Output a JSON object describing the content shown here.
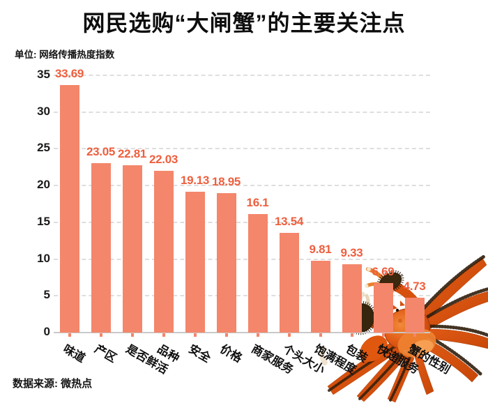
{
  "title": "网民选购“大闸蟹”的主要关注点",
  "subtitle": "单位: 网络传播热度指数",
  "source": "数据来源: 微热点",
  "chart_data": {
    "type": "bar",
    "title": "网民选购“大闸蟹”的主要关注点",
    "unit": "网络传播热度指数",
    "categories": [
      "味道",
      "产区",
      "是否鲜活",
      "品种",
      "安全",
      "价格",
      "商家服务",
      "个头大小",
      "饱满程度",
      "包装",
      "快递服务",
      "蟹的性别"
    ],
    "values": [
      33.69,
      23.05,
      22.81,
      22.03,
      19.13,
      18.95,
      16.1,
      13.54,
      9.81,
      9.33,
      6.69,
      4.73
    ],
    "value_labels": [
      "33.69",
      "23.05",
      "22.81",
      "22.03",
      "19.13",
      "18.95",
      "16.1",
      "13.54",
      "9.81",
      "9.33",
      "6.69",
      "4.73"
    ],
    "ylim": [
      0,
      35
    ],
    "yticks": [
      0,
      5,
      10,
      15,
      20,
      25,
      30,
      35
    ],
    "grid": true,
    "legend": "none",
    "bar_color": "#f4866b",
    "value_label_color": "#ee5f3e"
  },
  "decoration": {
    "crab_image": "hairy-crab-photo"
  }
}
